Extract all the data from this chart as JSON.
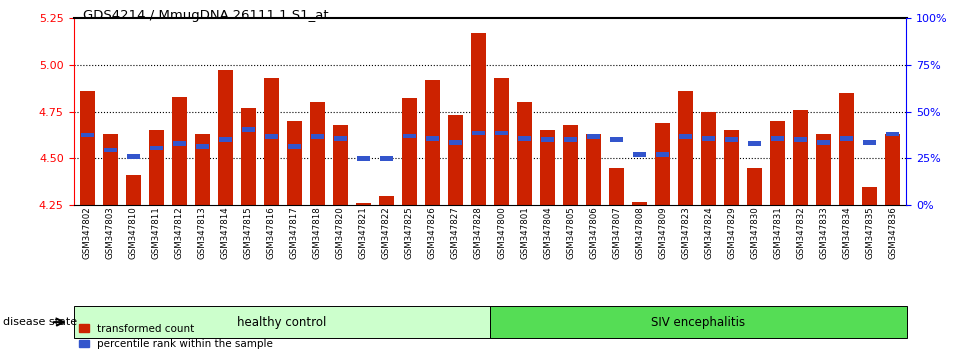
{
  "title": "GDS4214 / MmugDNA.26111.1.S1_at",
  "samples": [
    "GSM347802",
    "GSM347803",
    "GSM347810",
    "GSM347811",
    "GSM347812",
    "GSM347813",
    "GSM347814",
    "GSM347815",
    "GSM347816",
    "GSM347817",
    "GSM347818",
    "GSM347820",
    "GSM347821",
    "GSM347822",
    "GSM347825",
    "GSM347826",
    "GSM347827",
    "GSM347828",
    "GSM347800",
    "GSM347801",
    "GSM347804",
    "GSM347805",
    "GSM347806",
    "GSM347807",
    "GSM347808",
    "GSM347809",
    "GSM347823",
    "GSM347824",
    "GSM347829",
    "GSM347830",
    "GSM347831",
    "GSM347832",
    "GSM347833",
    "GSM347834",
    "GSM347835",
    "GSM347836"
  ],
  "bar_values": [
    4.86,
    4.63,
    4.41,
    4.65,
    4.83,
    4.63,
    4.97,
    4.77,
    4.93,
    4.7,
    4.8,
    4.68,
    4.26,
    4.3,
    4.82,
    4.92,
    4.73,
    5.17,
    4.93,
    4.8,
    4.65,
    4.68,
    4.63,
    4.45,
    4.27,
    4.69,
    4.86,
    4.75,
    4.65,
    4.45,
    4.7,
    4.76,
    4.63,
    4.85,
    4.35,
    4.63
  ],
  "percentile_values": [
    4.625,
    4.545,
    4.51,
    4.555,
    4.58,
    4.565,
    4.6,
    4.655,
    4.615,
    4.565,
    4.615,
    4.605,
    4.5,
    4.5,
    4.62,
    4.605,
    4.585,
    4.635,
    4.635,
    4.605,
    4.6,
    4.6,
    4.615,
    4.6,
    4.52,
    4.52,
    4.615,
    4.605,
    4.6,
    4.58,
    4.605,
    4.6,
    4.585,
    4.605,
    4.585,
    4.63
  ],
  "ylim": [
    4.25,
    5.25
  ],
  "yticks_left": [
    4.25,
    4.5,
    4.75,
    5.0,
    5.25
  ],
  "yticks_right": [
    0,
    25,
    50,
    75,
    100
  ],
  "bar_color": "#cc2200",
  "percentile_color": "#3355cc",
  "healthy_control_count": 18,
  "group1_label": "healthy control",
  "group2_label": "SIV encephalitis",
  "group1_color": "#ccffcc",
  "group2_color": "#55dd55",
  "bar_width": 0.65,
  "xtick_bg": "#cccccc"
}
